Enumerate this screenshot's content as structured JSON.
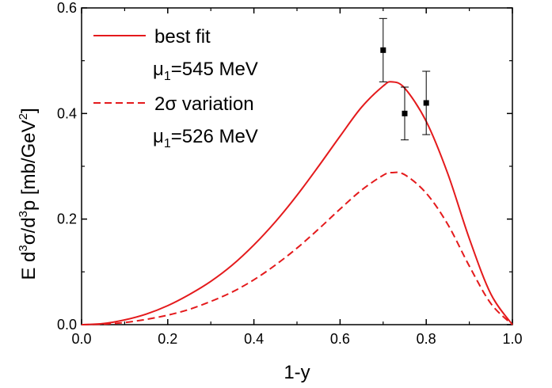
{
  "chart_data": {
    "type": "line",
    "xlabel": "1-y",
    "ylabel": {
      "prefix": "E d",
      "sup1": "3",
      "mid1": "σ/d",
      "sup2": "3",
      "mid2": "p [mb/GeV",
      "sup3": "2",
      "suffix": "]"
    },
    "xlim": [
      0.0,
      1.0
    ],
    "ylim": [
      0.0,
      0.6
    ],
    "xticks": [
      "0.0",
      "0.2",
      "0.4",
      "0.6",
      "0.8",
      "1.0"
    ],
    "yticks": [
      "0.0",
      "0.2",
      "0.4",
      "0.6"
    ],
    "grid": false,
    "legend_position": "top-left",
    "series": [
      {
        "id": "best_fit",
        "legend_label": "best fit",
        "legend_sublabel": {
          "mu": "μ",
          "sub": "1",
          "text": "=545 MeV"
        },
        "style": "solid",
        "color": "#e41a1c",
        "x": [
          0.0,
          0.05,
          0.1,
          0.15,
          0.2,
          0.25,
          0.3,
          0.35,
          0.4,
          0.45,
          0.5,
          0.55,
          0.6,
          0.65,
          0.7,
          0.72,
          0.75,
          0.8,
          0.85,
          0.9,
          0.95,
          1.0
        ],
        "y": [
          0.0,
          0.002,
          0.009,
          0.02,
          0.036,
          0.057,
          0.082,
          0.113,
          0.151,
          0.195,
          0.245,
          0.3,
          0.357,
          0.412,
          0.452,
          0.46,
          0.448,
          0.385,
          0.286,
          0.163,
          0.058,
          0.0
        ]
      },
      {
        "id": "variation",
        "legend_label": {
          "prefix": "2",
          "sigma": "σ",
          "suffix": " variation"
        },
        "legend_sublabel": {
          "mu": "μ",
          "sub": "1",
          "text": "=526 MeV"
        },
        "style": "dashed",
        "color": "#e41a1c",
        "x": [
          0.0,
          0.05,
          0.1,
          0.15,
          0.2,
          0.25,
          0.3,
          0.35,
          0.4,
          0.45,
          0.5,
          0.55,
          0.6,
          0.65,
          0.7,
          0.72,
          0.75,
          0.8,
          0.85,
          0.9,
          0.95,
          1.0
        ],
        "y": [
          0.0,
          0.001,
          0.004,
          0.01,
          0.018,
          0.029,
          0.044,
          0.062,
          0.085,
          0.113,
          0.145,
          0.181,
          0.219,
          0.255,
          0.283,
          0.288,
          0.284,
          0.249,
          0.19,
          0.111,
          0.04,
          0.0
        ]
      }
    ],
    "points": {
      "color": "#000000",
      "x": [
        0.7,
        0.75,
        0.8
      ],
      "y": [
        0.52,
        0.4,
        0.42
      ],
      "err_low": [
        0.06,
        0.05,
        0.06
      ],
      "err_high": [
        0.06,
        0.05,
        0.06
      ]
    }
  }
}
